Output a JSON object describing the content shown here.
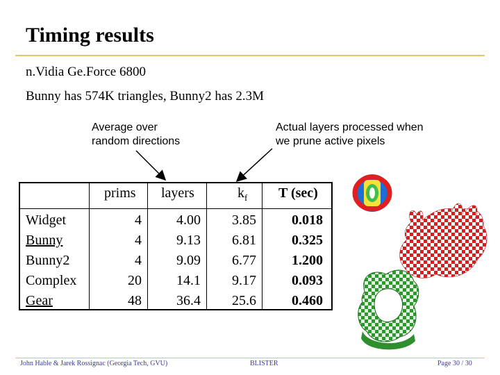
{
  "slide": {
    "title": "Timing results",
    "lines": [
      "n.Vidia Ge.Force 6800",
      "Bunny has 574K triangles, Bunny2 has 2.3M"
    ],
    "note_left": [
      "Average over",
      "random directions"
    ],
    "note_right": [
      "Actual layers processed when",
      "we prune active pixels"
    ]
  },
  "table": {
    "headers": [
      "",
      "prims",
      "layers",
      "k",
      "T (sec)"
    ],
    "header_k_sub": "f",
    "rows": [
      {
        "name": "Widget",
        "prims": "4",
        "layers": "4.00",
        "kf": "3.85",
        "t": "0.018",
        "underline": false
      },
      {
        "name": "Bunny",
        "prims": "4",
        "layers": "9.13",
        "kf": "6.81",
        "t": "0.325",
        "underline": true
      },
      {
        "name": "Bunny2",
        "prims": "4",
        "layers": "9.09",
        "kf": "6.77",
        "t": "1.200",
        "underline": false
      },
      {
        "name": "Complex",
        "prims": "20",
        "layers": "14.1",
        "kf": "9.17",
        "t": "0.093",
        "underline": false
      },
      {
        "name": "Gear",
        "prims": "48",
        "layers": "36.4",
        "kf": "25.6",
        "t": "0.460",
        "underline": true
      }
    ]
  },
  "footer": {
    "left": "John Hable & Jarek Rossignac (Georgia Tech, GVU)",
    "center": "BLISTER",
    "right": "Page 30 / 30"
  },
  "colors": {
    "accent_rule": "#e8c36e",
    "footer_text": "#3a3aa0"
  }
}
